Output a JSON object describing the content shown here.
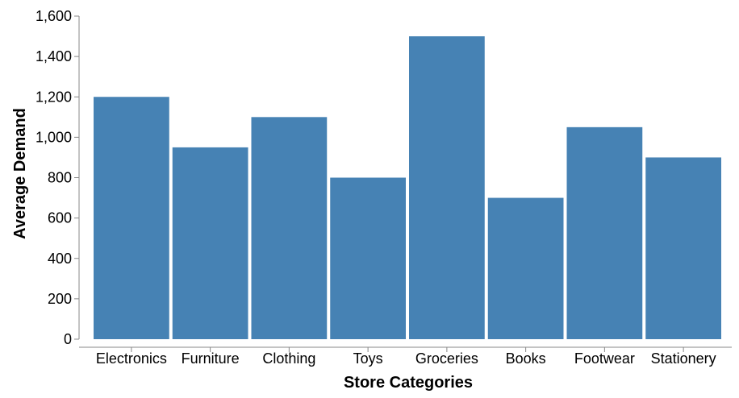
{
  "chart_data": {
    "type": "bar",
    "categories": [
      "Electronics",
      "Furniture",
      "Clothing",
      "Toys",
      "Groceries",
      "Books",
      "Footwear",
      "Stationery"
    ],
    "values": [
      1200,
      950,
      1100,
      800,
      1500,
      700,
      1050,
      900
    ],
    "xlabel": "Store Categories",
    "ylabel": "Average Demand",
    "ylim": [
      0,
      1600
    ],
    "yticks": [
      0,
      200,
      400,
      600,
      800,
      1000,
      1200,
      1400,
      1600
    ],
    "ytick_labels": [
      "0",
      "200",
      "400",
      "600",
      "800",
      "1,000",
      "1,200",
      "1,400",
      "1,600"
    ],
    "grid": false,
    "bar_color": "#4682b4"
  }
}
